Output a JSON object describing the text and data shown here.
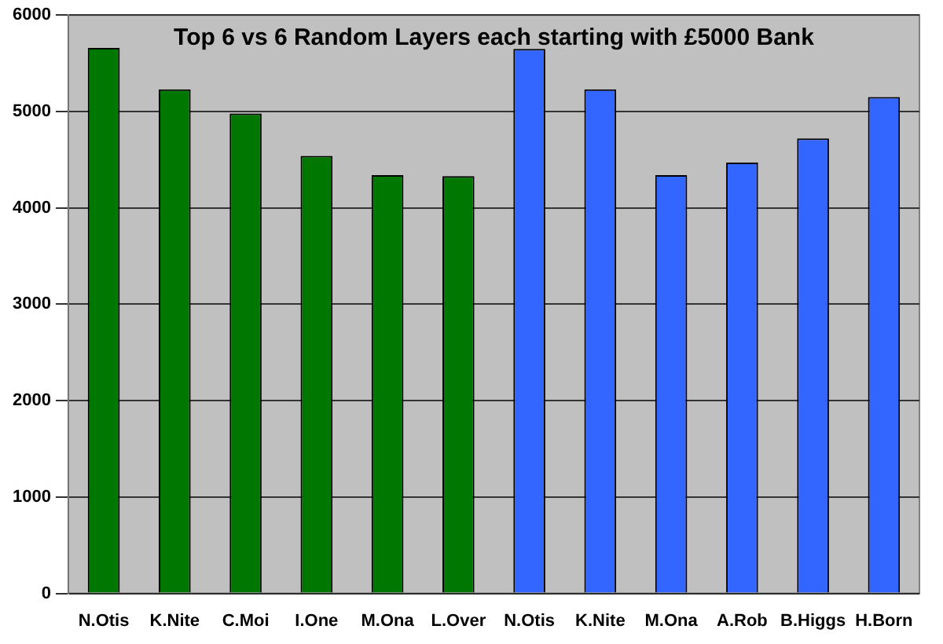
{
  "chart_data": {
    "type": "bar",
    "title": "Top 6 vs 6 Random Layers each starting with £5000 Bank",
    "categories": [
      "N.Otis",
      "K.Nite",
      "C.Moi",
      "I.One",
      "M.Ona",
      "L.Over",
      "N.Otis",
      "K.Nite",
      "M.Ona",
      "A.Rob",
      "B.Higgs",
      "H.Born"
    ],
    "values": [
      5660,
      5230,
      4980,
      4540,
      4340,
      4330,
      5650,
      5230,
      4340,
      4470,
      4720,
      5150
    ],
    "colors": [
      "#007700",
      "#007700",
      "#007700",
      "#007700",
      "#007700",
      "#007700",
      "#3366ff",
      "#3366ff",
      "#3366ff",
      "#3366ff",
      "#3366ff",
      "#3366ff"
    ],
    "ylim": [
      0,
      6000
    ],
    "yticks": [
      0,
      1000,
      2000,
      3000,
      4000,
      5000,
      6000
    ],
    "grid": "y",
    "legend": false
  }
}
